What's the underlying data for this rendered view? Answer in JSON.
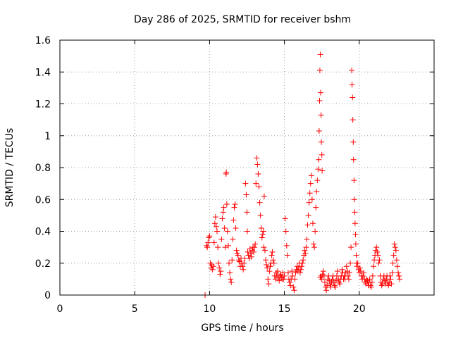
{
  "chart_data": {
    "type": "scatter",
    "title": "Day 286 of 2025, SRMTID for receiver bshm",
    "xlabel": "GPS time / hours",
    "ylabel": "SRMTID / TECUs",
    "xlim": [
      0,
      25
    ],
    "ylim": [
      0,
      1.6
    ],
    "xticks": [
      0,
      5,
      10,
      15,
      20
    ],
    "xtick_labels": [
      "0",
      "5",
      "10",
      "15",
      "20"
    ],
    "yticks": [
      0,
      0.2,
      0.4,
      0.6,
      0.8,
      1,
      1.2,
      1.4,
      1.6
    ],
    "ytick_labels": [
      "0",
      "0.2",
      "0.4",
      "0.6",
      "0.8",
      "1",
      "1.2",
      "1.4",
      "1.6"
    ],
    "grid": true,
    "legend": "none",
    "marker": "plus",
    "series": [
      {
        "name": "SRMTID",
        "color": "#ff0000",
        "points": [
          [
            9.7,
            0.0
          ],
          [
            9.8,
            0.31
          ],
          [
            9.85,
            0.3
          ],
          [
            9.9,
            0.33
          ],
          [
            9.95,
            0.36
          ],
          [
            10.0,
            0.37
          ],
          [
            10.05,
            0.2
          ],
          [
            10.1,
            0.17
          ],
          [
            10.15,
            0.19
          ],
          [
            10.2,
            0.16
          ],
          [
            10.25,
            0.18
          ],
          [
            10.3,
            0.33
          ],
          [
            10.35,
            0.45
          ],
          [
            10.4,
            0.49
          ],
          [
            10.45,
            0.43
          ],
          [
            10.5,
            0.4
          ],
          [
            10.55,
            0.3
          ],
          [
            10.6,
            0.2
          ],
          [
            10.65,
            0.17
          ],
          [
            10.7,
            0.13
          ],
          [
            10.75,
            0.15
          ],
          [
            10.8,
            0.35
          ],
          [
            10.85,
            0.48
          ],
          [
            10.9,
            0.52
          ],
          [
            10.95,
            0.55
          ],
          [
            11.0,
            0.42
          ],
          [
            11.05,
            0.3
          ],
          [
            11.1,
            0.76
          ],
          [
            11.12,
            0.77
          ],
          [
            11.15,
            0.57
          ],
          [
            11.2,
            0.4
          ],
          [
            11.25,
            0.31
          ],
          [
            11.3,
            0.2
          ],
          [
            11.35,
            0.14
          ],
          [
            11.4,
            0.1
          ],
          [
            11.45,
            0.08
          ],
          [
            11.5,
            0.22
          ],
          [
            11.55,
            0.35
          ],
          [
            11.6,
            0.47
          ],
          [
            11.65,
            0.55
          ],
          [
            11.7,
            0.57
          ],
          [
            11.75,
            0.42
          ],
          [
            11.8,
            0.28
          ],
          [
            11.85,
            0.26
          ],
          [
            11.9,
            0.25
          ],
          [
            11.95,
            0.22
          ],
          [
            12.0,
            0.21
          ],
          [
            12.05,
            0.18
          ],
          [
            12.1,
            0.23
          ],
          [
            12.15,
            0.2
          ],
          [
            12.2,
            0.18
          ],
          [
            12.25,
            0.16
          ],
          [
            12.3,
            0.2
          ],
          [
            12.35,
            0.23
          ],
          [
            12.4,
            0.7
          ],
          [
            12.45,
            0.63
          ],
          [
            12.5,
            0.52
          ],
          [
            12.52,
            0.4
          ],
          [
            12.55,
            0.27
          ],
          [
            12.6,
            0.25
          ],
          [
            12.65,
            0.23
          ],
          [
            12.7,
            0.29
          ],
          [
            12.75,
            0.26
          ],
          [
            12.8,
            0.24
          ],
          [
            12.85,
            0.28
          ],
          [
            12.9,
            0.3
          ],
          [
            12.95,
            0.27
          ],
          [
            13.0,
            0.3
          ],
          [
            13.05,
            0.32
          ],
          [
            13.1,
            0.7
          ],
          [
            13.15,
            0.86
          ],
          [
            13.2,
            0.82
          ],
          [
            13.25,
            0.76
          ],
          [
            13.3,
            0.68
          ],
          [
            13.35,
            0.58
          ],
          [
            13.4,
            0.5
          ],
          [
            13.45,
            0.42
          ],
          [
            13.5,
            0.36
          ],
          [
            13.55,
            0.38
          ],
          [
            13.6,
            0.4
          ],
          [
            13.62,
            0.3
          ],
          [
            13.65,
            0.62
          ],
          [
            13.7,
            0.28
          ],
          [
            13.75,
            0.22
          ],
          [
            13.8,
            0.19
          ],
          [
            13.85,
            0.17
          ],
          [
            13.9,
            0.1
          ],
          [
            13.95,
            0.07
          ],
          [
            14.0,
            0.15
          ],
          [
            14.05,
            0.18
          ],
          [
            14.1,
            0.2
          ],
          [
            14.15,
            0.25
          ],
          [
            14.2,
            0.27
          ],
          [
            14.25,
            0.22
          ],
          [
            14.3,
            0.2
          ],
          [
            14.35,
            0.12
          ],
          [
            14.4,
            0.1
          ],
          [
            14.45,
            0.14
          ],
          [
            14.5,
            0.12
          ],
          [
            14.55,
            0.15
          ],
          [
            14.6,
            0.11
          ],
          [
            14.65,
            0.09
          ],
          [
            14.7,
            0.12
          ],
          [
            14.75,
            0.13
          ],
          [
            14.8,
            0.11
          ],
          [
            14.85,
            0.1
          ],
          [
            14.9,
            0.14
          ],
          [
            14.95,
            0.1
          ],
          [
            15.0,
            0.12
          ],
          [
            15.05,
            0.48
          ],
          [
            15.1,
            0.4
          ],
          [
            15.15,
            0.31
          ],
          [
            15.2,
            0.25
          ],
          [
            15.25,
            0.14
          ],
          [
            15.3,
            0.1
          ],
          [
            15.35,
            0.08
          ],
          [
            15.4,
            0.06
          ],
          [
            15.45,
            0.1
          ],
          [
            15.5,
            0.15
          ],
          [
            15.55,
            0.12
          ],
          [
            15.6,
            0.05
          ],
          [
            15.65,
            0.03
          ],
          [
            15.7,
            0.1
          ],
          [
            15.75,
            0.14
          ],
          [
            15.8,
            0.16
          ],
          [
            15.85,
            0.18
          ],
          [
            15.9,
            0.15
          ],
          [
            15.95,
            0.17
          ],
          [
            16.0,
            0.2
          ],
          [
            16.05,
            0.14
          ],
          [
            16.1,
            0.16
          ],
          [
            16.15,
            0.18
          ],
          [
            16.2,
            0.2
          ],
          [
            16.25,
            0.22
          ],
          [
            16.3,
            0.25
          ],
          [
            16.35,
            0.28
          ],
          [
            16.4,
            0.26
          ],
          [
            16.45,
            0.3
          ],
          [
            16.5,
            0.35
          ],
          [
            16.55,
            0.44
          ],
          [
            16.6,
            0.5
          ],
          [
            16.65,
            0.58
          ],
          [
            16.7,
            0.64
          ],
          [
            16.75,
            0.7
          ],
          [
            16.8,
            0.75
          ],
          [
            16.85,
            0.6
          ],
          [
            16.9,
            0.45
          ],
          [
            16.95,
            0.32
          ],
          [
            17.0,
            0.3
          ],
          [
            17.05,
            0.4
          ],
          [
            17.1,
            0.55
          ],
          [
            17.15,
            0.65
          ],
          [
            17.2,
            0.72
          ],
          [
            17.25,
            0.79
          ],
          [
            17.3,
            0.85
          ],
          [
            17.32,
            1.03
          ],
          [
            17.35,
            1.22
          ],
          [
            17.37,
            1.41
          ],
          [
            17.4,
            1.51
          ],
          [
            17.42,
            1.27
          ],
          [
            17.45,
            1.13
          ],
          [
            17.47,
            0.96
          ],
          [
            17.5,
            0.88
          ],
          [
            17.52,
            0.78
          ],
          [
            17.4,
            0.11
          ],
          [
            17.45,
            0.12
          ],
          [
            17.5,
            0.1
          ],
          [
            17.55,
            0.13
          ],
          [
            17.6,
            0.15
          ],
          [
            17.65,
            0.12
          ],
          [
            17.7,
            0.08
          ],
          [
            17.75,
            0.05
          ],
          [
            17.8,
            0.03
          ],
          [
            17.85,
            0.06
          ],
          [
            17.9,
            0.1
          ],
          [
            17.95,
            0.12
          ],
          [
            18.0,
            0.09
          ],
          [
            18.05,
            0.07
          ],
          [
            18.1,
            0.05
          ],
          [
            18.15,
            0.08
          ],
          [
            18.2,
            0.1
          ],
          [
            18.25,
            0.12
          ],
          [
            18.3,
            0.08
          ],
          [
            18.35,
            0.06
          ],
          [
            18.4,
            0.05
          ],
          [
            18.45,
            0.09
          ],
          [
            18.5,
            0.12
          ],
          [
            18.55,
            0.15
          ],
          [
            18.6,
            0.1
          ],
          [
            18.65,
            0.08
          ],
          [
            18.7,
            0.07
          ],
          [
            18.75,
            0.1
          ],
          [
            18.8,
            0.12
          ],
          [
            18.85,
            0.16
          ],
          [
            18.9,
            0.14
          ],
          [
            18.95,
            0.1
          ],
          [
            19.0,
            0.12
          ],
          [
            19.05,
            0.1
          ],
          [
            19.1,
            0.14
          ],
          [
            19.15,
            0.18
          ],
          [
            19.2,
            0.15
          ],
          [
            19.25,
            0.12
          ],
          [
            19.3,
            0.1
          ],
          [
            19.35,
            0.14
          ],
          [
            19.4,
            0.2
          ],
          [
            19.45,
            0.3
          ],
          [
            19.5,
            1.41
          ],
          [
            19.52,
            1.32
          ],
          [
            19.55,
            1.24
          ],
          [
            19.57,
            1.1
          ],
          [
            19.6,
            0.96
          ],
          [
            19.62,
            0.85
          ],
          [
            19.65,
            0.72
          ],
          [
            19.67,
            0.6
          ],
          [
            19.7,
            0.52
          ],
          [
            19.72,
            0.45
          ],
          [
            19.75,
            0.38
          ],
          [
            19.77,
            0.32
          ],
          [
            19.8,
            0.25
          ],
          [
            19.82,
            0.2
          ],
          [
            19.85,
            0.18
          ],
          [
            19.9,
            0.2
          ],
          [
            19.95,
            0.16
          ],
          [
            20.0,
            0.14
          ],
          [
            20.05,
            0.17
          ],
          [
            20.1,
            0.15
          ],
          [
            20.15,
            0.12
          ],
          [
            20.2,
            0.1
          ],
          [
            20.25,
            0.12
          ],
          [
            20.3,
            0.14
          ],
          [
            20.35,
            0.1
          ],
          [
            20.4,
            0.08
          ],
          [
            20.45,
            0.07
          ],
          [
            20.5,
            0.1
          ],
          [
            20.55,
            0.09
          ],
          [
            20.6,
            0.06
          ],
          [
            20.65,
            0.08
          ],
          [
            20.7,
            0.1
          ],
          [
            20.75,
            0.06
          ],
          [
            20.8,
            0.05
          ],
          [
            20.85,
            0.08
          ],
          [
            20.9,
            0.12
          ],
          [
            20.95,
            0.18
          ],
          [
            21.0,
            0.22
          ],
          [
            21.05,
            0.25
          ],
          [
            21.1,
            0.28
          ],
          [
            21.15,
            0.3
          ],
          [
            21.2,
            0.27
          ],
          [
            21.25,
            0.25
          ],
          [
            21.3,
            0.2
          ],
          [
            21.35,
            0.22
          ],
          [
            21.4,
            0.12
          ],
          [
            21.45,
            0.08
          ],
          [
            21.5,
            0.06
          ],
          [
            21.55,
            0.07
          ],
          [
            21.6,
            0.1
          ],
          [
            21.65,
            0.12
          ],
          [
            21.7,
            0.09
          ],
          [
            21.75,
            0.07
          ],
          [
            21.8,
            0.1
          ],
          [
            21.85,
            0.12
          ],
          [
            21.9,
            0.08
          ],
          [
            21.95,
            0.06
          ],
          [
            22.0,
            0.08
          ],
          [
            22.05,
            0.12
          ],
          [
            22.1,
            0.1
          ],
          [
            22.15,
            0.07
          ],
          [
            22.2,
            0.14
          ],
          [
            22.25,
            0.2
          ],
          [
            22.3,
            0.25
          ],
          [
            22.35,
            0.32
          ],
          [
            22.4,
            0.3
          ],
          [
            22.45,
            0.28
          ],
          [
            22.5,
            0.22
          ],
          [
            22.55,
            0.18
          ],
          [
            22.6,
            0.14
          ],
          [
            22.65,
            0.12
          ],
          [
            22.7,
            0.1
          ]
        ]
      }
    ]
  }
}
